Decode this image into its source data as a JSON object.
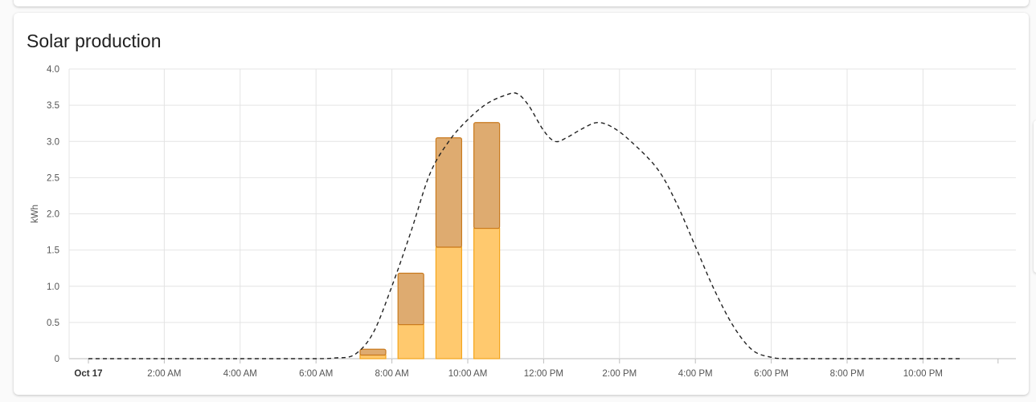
{
  "card": {
    "title": "Solar production"
  },
  "chart_data": {
    "type": "bar",
    "title": "Solar production",
    "ylabel": "kWh",
    "xlabel": "",
    "ylim": [
      0,
      4.0
    ],
    "yticks": [
      "0",
      "0.5",
      "1.0",
      "1.5",
      "2.0",
      "2.5",
      "3.0",
      "3.5",
      "4.0"
    ],
    "xticks": [
      {
        "label": "Oct 17",
        "hour": 0,
        "bold": true
      },
      {
        "label": "2:00 AM",
        "hour": 2
      },
      {
        "label": "4:00 AM",
        "hour": 4
      },
      {
        "label": "6:00 AM",
        "hour": 6
      },
      {
        "label": "8:00 AM",
        "hour": 8
      },
      {
        "label": "10:00 AM",
        "hour": 10
      },
      {
        "label": "12:00 PM",
        "hour": 12
      },
      {
        "label": "2:00 PM",
        "hour": 14
      },
      {
        "label": "4:00 PM",
        "hour": 16
      },
      {
        "label": "6:00 PM",
        "hour": 18
      },
      {
        "label": "8:00 PM",
        "hour": 20
      },
      {
        "label": "10:00 PM",
        "hour": 22
      }
    ],
    "x_hours": [
      7,
      8,
      9,
      10,
      11
    ],
    "series": [
      {
        "color": "#ffc96e",
        "border": "#f4a51c",
        "values": [
          0.05,
          0.47,
          1.54,
          1.8,
          0
        ]
      },
      {
        "color": "#deab70",
        "border": "#c97a1e",
        "values": [
          0.08,
          0.71,
          1.51,
          1.46,
          0
        ]
      }
    ],
    "forecast": {
      "style": "dashed",
      "color": "#222222",
      "points": [
        [
          0,
          0
        ],
        [
          2,
          0
        ],
        [
          4,
          0
        ],
        [
          6,
          0
        ],
        [
          6.5,
          0.01
        ],
        [
          7,
          0.05
        ],
        [
          7.5,
          0.35
        ],
        [
          8,
          1.0
        ],
        [
          8.5,
          1.75
        ],
        [
          9,
          2.55
        ],
        [
          9.5,
          3.0
        ],
        [
          10,
          3.3
        ],
        [
          10.5,
          3.52
        ],
        [
          11,
          3.64
        ],
        [
          11.3,
          3.66
        ],
        [
          11.6,
          3.5
        ],
        [
          12,
          3.15
        ],
        [
          12.3,
          3.0
        ],
        [
          12.6,
          3.05
        ],
        [
          13,
          3.17
        ],
        [
          13.4,
          3.26
        ],
        [
          13.8,
          3.2
        ],
        [
          14.3,
          3.0
        ],
        [
          15,
          2.62
        ],
        [
          15.5,
          2.15
        ],
        [
          16,
          1.55
        ],
        [
          16.5,
          0.95
        ],
        [
          17,
          0.45
        ],
        [
          17.5,
          0.12
        ],
        [
          18,
          0.02
        ],
        [
          18.5,
          0.0
        ],
        [
          20,
          0
        ],
        [
          22,
          0
        ],
        [
          23,
          0
        ]
      ]
    },
    "grid": true,
    "legend": "none"
  }
}
